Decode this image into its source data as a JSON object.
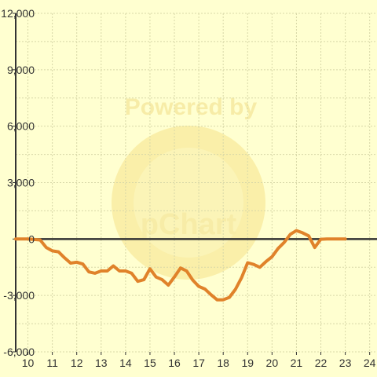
{
  "colors": {
    "background": "#ffffd0",
    "grid": "#d8d8a8",
    "axis": "#333333",
    "line": "#e0822a",
    "watermark": "#f5e99a"
  },
  "watermark": {
    "text_top": "Powered by",
    "text_main": "pChart"
  },
  "chart_data": {
    "type": "line",
    "title": "",
    "xlabel": "",
    "ylabel": "",
    "xlim": [
      9.5,
      24.3
    ],
    "ylim": [
      -6000,
      12000
    ],
    "grid": true,
    "x_ticks": [
      10,
      11,
      12,
      13,
      14,
      15,
      16,
      17,
      18,
      19,
      20,
      21,
      22,
      23,
      24
    ],
    "x_tick_labels": [
      "10",
      "11",
      "12",
      "13",
      "14",
      "15",
      "16",
      "17",
      "18",
      "19",
      "20",
      "21",
      "22",
      "23",
      "24"
    ],
    "y_ticks": [
      -6000,
      -3000,
      0,
      3000,
      6000,
      9000,
      12000
    ],
    "y_tick_labels": [
      "-6,000",
      "-3,000",
      "0",
      "3,000",
      "6,000",
      "9,000",
      "12,000"
    ],
    "series": [
      {
        "x": [
          9.5,
          10.0,
          10.5,
          10.75,
          11.0,
          11.25,
          11.5,
          11.75,
          12.0,
          12.25,
          12.5,
          12.75,
          13.0,
          13.25,
          13.5,
          13.75,
          14.0,
          14.25,
          14.5,
          14.75,
          15.0,
          15.25,
          15.5,
          15.75,
          16.0,
          16.25,
          16.5,
          16.75,
          17.0,
          17.25,
          17.5,
          17.75,
          18.0,
          18.25,
          18.5,
          18.75,
          19.0,
          19.25,
          19.5,
          19.75,
          20.0,
          20.25,
          20.5,
          20.75,
          21.0,
          21.25,
          21.5,
          21.75,
          22.0,
          22.25,
          22.5,
          22.75,
          23.0
        ],
        "y": [
          0,
          0,
          -50,
          -450,
          -630,
          -680,
          -1000,
          -1280,
          -1230,
          -1330,
          -1750,
          -1820,
          -1700,
          -1700,
          -1430,
          -1700,
          -1700,
          -1820,
          -2250,
          -2160,
          -1580,
          -2020,
          -2160,
          -2450,
          -2020,
          -1540,
          -1700,
          -2180,
          -2520,
          -2660,
          -2960,
          -3230,
          -3230,
          -3100,
          -2680,
          -2060,
          -1260,
          -1350,
          -1500,
          -1200,
          -940,
          -500,
          -180,
          250,
          450,
          330,
          170,
          -450,
          -10,
          0,
          0,
          0,
          0
        ]
      }
    ]
  }
}
